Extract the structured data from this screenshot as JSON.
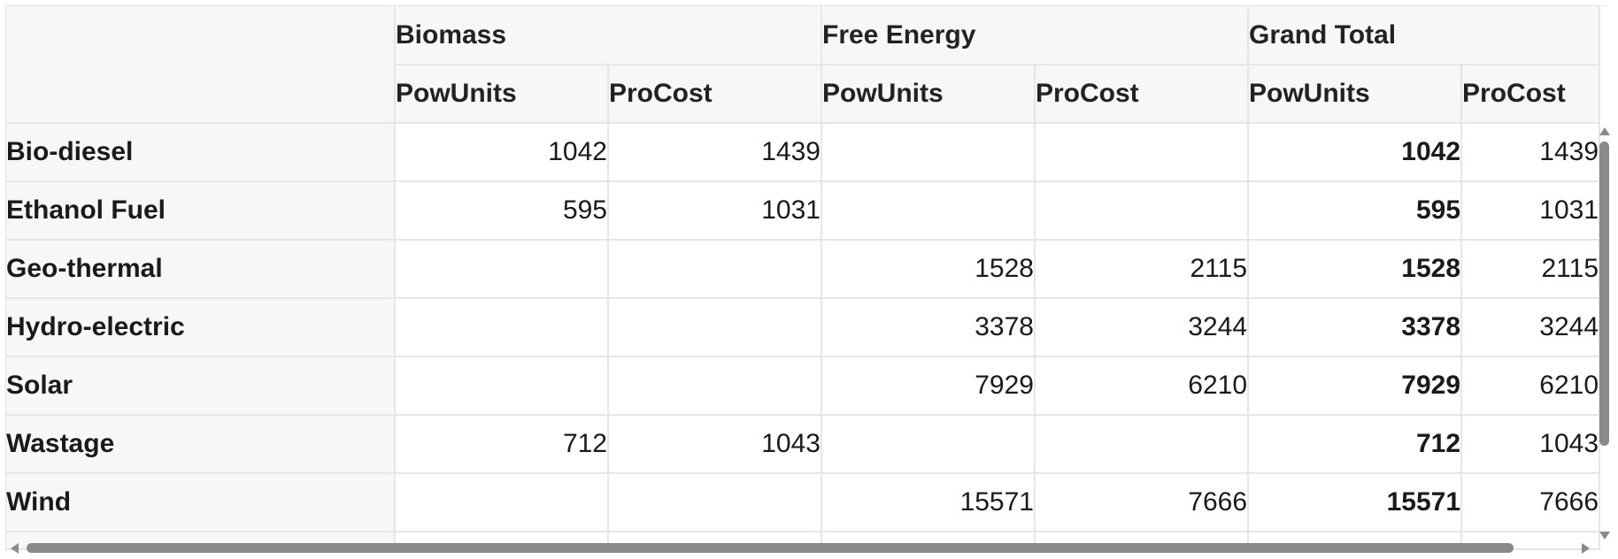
{
  "pivot": {
    "column_groups": [
      "Biomass",
      "Free Energy",
      "Grand Total"
    ],
    "measures": [
      "PowUnits",
      "ProCost"
    ],
    "rows": [
      {
        "label": "Bio-diesel",
        "biomass_pow": "1042",
        "biomass_cost": "1439",
        "free_pow": "",
        "free_cost": "",
        "total_pow": "1042",
        "total_cost": "1439"
      },
      {
        "label": "Ethanol Fuel",
        "biomass_pow": "595",
        "biomass_cost": "1031",
        "free_pow": "",
        "free_cost": "",
        "total_pow": "595",
        "total_cost": "1031"
      },
      {
        "label": "Geo-thermal",
        "biomass_pow": "",
        "biomass_cost": "",
        "free_pow": "1528",
        "free_cost": "2115",
        "total_pow": "1528",
        "total_cost": "2115"
      },
      {
        "label": "Hydro-electric",
        "biomass_pow": "",
        "biomass_cost": "",
        "free_pow": "3378",
        "free_cost": "3244",
        "total_pow": "3378",
        "total_cost": "3244"
      },
      {
        "label": "Solar",
        "biomass_pow": "",
        "biomass_cost": "",
        "free_pow": "7929",
        "free_cost": "6210",
        "total_pow": "7929",
        "total_cost": "6210"
      },
      {
        "label": "Wastage",
        "biomass_pow": "712",
        "biomass_cost": "1043",
        "free_pow": "",
        "free_cost": "",
        "total_pow": "712",
        "total_cost": "1043"
      },
      {
        "label": "Wind",
        "biomass_pow": "",
        "biomass_cost": "",
        "free_pow": "15571",
        "free_cost": "7666",
        "total_pow": "15571",
        "total_cost": "7666"
      }
    ]
  },
  "colors": {
    "header_bg": "#f8f7f6",
    "grid_line": "#e6e6e6",
    "scrollbar": "#8a8a8a"
  }
}
